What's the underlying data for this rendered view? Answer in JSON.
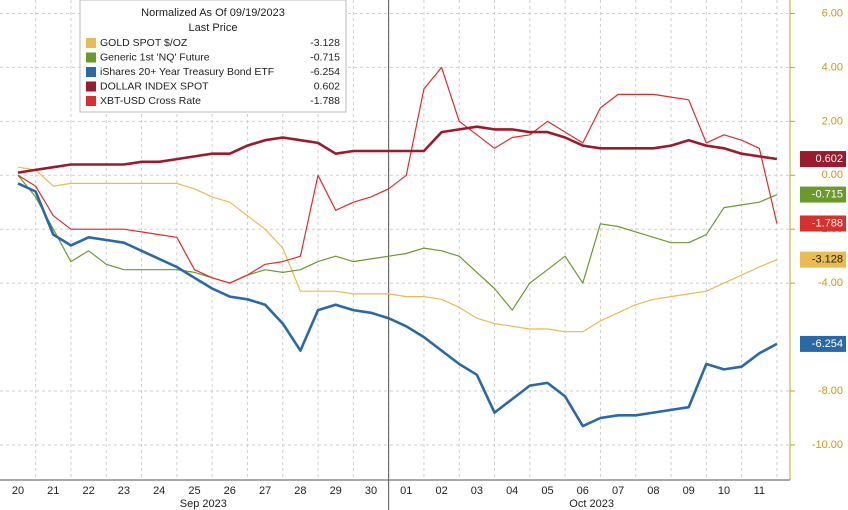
{
  "chart_data": {
    "type": "line",
    "legend_title": "Normalized As Of 09/19/2023",
    "legend_subtitle": "Last Price",
    "categories": [
      "20",
      null,
      "21",
      null,
      "22",
      null,
      "23",
      null,
      "24",
      null,
      "25",
      null,
      "26",
      null,
      "27",
      null,
      "28",
      null,
      "29",
      null,
      "30",
      null,
      "01",
      null,
      "02",
      null,
      "03",
      null,
      "04",
      null,
      "05",
      null,
      "06",
      null,
      "07",
      null,
      "08",
      null,
      "09",
      null,
      "10",
      null,
      "11",
      null
    ],
    "x_groups": [
      {
        "label": "Sep 2023",
        "first": 0
      },
      {
        "label": "Oct 2023",
        "first": 22
      }
    ],
    "ylim": [
      -11.3,
      6.5
    ],
    "yticks": [
      {
        "value": 6,
        "label": "6.00"
      },
      {
        "value": 4,
        "label": "4.00"
      },
      {
        "value": 2,
        "label": "2.00"
      },
      {
        "value": 0,
        "label": "0.00"
      },
      {
        "value": -2,
        "label": "-2.00"
      },
      {
        "value": -4,
        "label": "-4.00"
      },
      {
        "value": -8,
        "label": "-8.00"
      },
      {
        "value": -10,
        "label": "-10.00"
      }
    ],
    "grid": true,
    "legend": "upper left",
    "series": [
      {
        "name": "GOLD SPOT $/OZ",
        "color": "#e8bc52",
        "last_price": -3.128,
        "values": [
          0.3,
          0.2,
          -0.4,
          -0.3,
          -0.3,
          -0.3,
          -0.3,
          -0.3,
          -0.3,
          -0.3,
          -0.5,
          -0.8,
          -1.0,
          -1.5,
          -2.0,
          -2.7,
          -4.3,
          -4.3,
          -4.3,
          -4.4,
          -4.4,
          -4.4,
          -4.5,
          -4.5,
          -4.6,
          -4.9,
          -5.3,
          -5.5,
          -5.6,
          -5.7,
          -5.7,
          -5.8,
          -5.8,
          -5.4,
          -5.1,
          -4.8,
          -4.6,
          -4.5,
          -4.4,
          -4.3,
          -4.0,
          -3.7,
          -3.4,
          -3.128
        ]
      },
      {
        "name": "Generic 1st 'NQ' Future",
        "color": "#6b9a2c",
        "last_price": -0.715,
        "values": [
          0,
          -0.8,
          -2.0,
          -3.2,
          -2.8,
          -3.3,
          -3.5,
          -3.5,
          -3.5,
          -3.5,
          -3.6,
          -3.8,
          -4.0,
          -3.7,
          -3.5,
          -3.6,
          -3.5,
          -3.2,
          -3.0,
          -3.2,
          -3.1,
          -3.0,
          -2.9,
          -2.7,
          -2.8,
          -3.0,
          -3.6,
          -4.2,
          -5.0,
          -4.0,
          -3.5,
          -3.0,
          -4.0,
          -1.8,
          -1.9,
          -2.1,
          -2.3,
          -2.5,
          -2.5,
          -2.2,
          -1.2,
          -1.1,
          -1.0,
          -0.715
        ]
      },
      {
        "name": "iShares 20+ Year Treasury Bond ETF",
        "color": "#2a69a8",
        "last_price": -6.254,
        "values": [
          -0.3,
          -0.6,
          -2.2,
          -2.6,
          -2.3,
          -2.4,
          -2.5,
          -2.8,
          -3.1,
          -3.4,
          -3.8,
          -4.2,
          -4.5,
          -4.6,
          -4.8,
          -5.5,
          -6.5,
          -5.0,
          -4.8,
          -5.0,
          -5.1,
          -5.3,
          -5.6,
          -6.0,
          -6.5,
          -7.0,
          -7.4,
          -8.8,
          -8.3,
          -7.8,
          -7.7,
          -8.2,
          -9.3,
          -9.0,
          -8.9,
          -8.9,
          -8.8,
          -8.7,
          -8.6,
          -7.0,
          -7.2,
          -7.1,
          -6.6,
          -6.254
        ]
      },
      {
        "name": "DOLLAR INDEX SPOT",
        "color": "#9b1b2e",
        "last_price": 0.602,
        "values": [
          0.1,
          0.2,
          0.3,
          0.4,
          0.4,
          0.4,
          0.4,
          0.5,
          0.5,
          0.6,
          0.7,
          0.8,
          0.8,
          1.1,
          1.3,
          1.4,
          1.3,
          1.2,
          0.8,
          0.9,
          0.9,
          0.9,
          0.9,
          0.9,
          1.6,
          1.7,
          1.8,
          1.7,
          1.7,
          1.6,
          1.6,
          1.4,
          1.1,
          1.0,
          1.0,
          1.0,
          1.0,
          1.1,
          1.3,
          1.1,
          1.0,
          0.8,
          0.7,
          0.602
        ]
      },
      {
        "name": "XBT-USD Cross Rate",
        "color": "#d8302c",
        "last_price": -1.788,
        "values": [
          0,
          -0.4,
          -1.5,
          -2.0,
          -2.0,
          -2.0,
          -2.0,
          -2.1,
          -2.2,
          -2.3,
          -3.5,
          -3.8,
          -4.0,
          -3.7,
          -3.3,
          -3.2,
          -3.0,
          0.0,
          -1.3,
          -1.0,
          -0.8,
          -0.5,
          0.0,
          3.2,
          4.0,
          2.0,
          1.5,
          1.0,
          1.4,
          1.5,
          2.0,
          1.6,
          1.2,
          2.5,
          3.0,
          3.0,
          3.0,
          2.9,
          2.8,
          1.2,
          1.5,
          1.3,
          1.0,
          -1.788
        ]
      }
    ]
  }
}
